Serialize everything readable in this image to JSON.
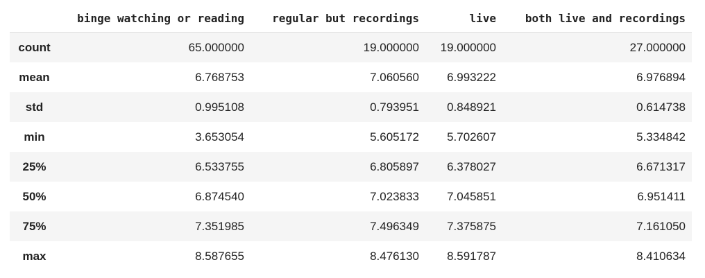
{
  "table": {
    "index_header": "",
    "columns": [
      "binge watching or reading",
      "regular but recordings",
      "live",
      "both live and recordings"
    ],
    "rows": [
      {
        "label": "count",
        "values": [
          "65.000000",
          "19.000000",
          "19.000000",
          "27.000000"
        ]
      },
      {
        "label": "mean",
        "values": [
          "6.768753",
          "7.060560",
          "6.993222",
          "6.976894"
        ]
      },
      {
        "label": "std",
        "values": [
          "0.995108",
          "0.793951",
          "0.848921",
          "0.614738"
        ]
      },
      {
        "label": "min",
        "values": [
          "3.653054",
          "5.605172",
          "5.702607",
          "5.334842"
        ]
      },
      {
        "label": "25%",
        "values": [
          "6.533755",
          "6.805897",
          "6.378027",
          "6.671317"
        ]
      },
      {
        "label": "50%",
        "values": [
          "6.874540",
          "7.023833",
          "7.045851",
          "6.951411"
        ]
      },
      {
        "label": "75%",
        "values": [
          "7.351985",
          "7.496349",
          "7.375875",
          "7.161050"
        ]
      },
      {
        "label": "max",
        "values": [
          "8.587655",
          "8.476130",
          "8.591787",
          "8.410634"
        ]
      }
    ]
  }
}
